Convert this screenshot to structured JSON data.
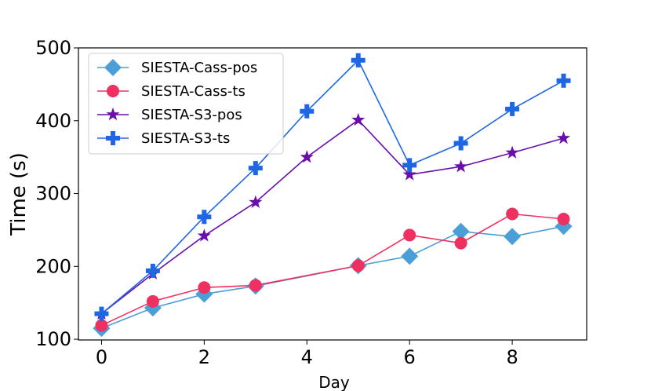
{
  "chart_data": {
    "type": "line",
    "title": "",
    "xlabel": "Day",
    "ylabel": "Time (s)",
    "xlim": [
      -0.45,
      9.45
    ],
    "ylim": [
      99,
      500
    ],
    "xticks": [
      0,
      2,
      4,
      6,
      8
    ],
    "yticks": [
      100,
      200,
      300,
      400,
      500
    ],
    "x": [
      0,
      1,
      2,
      3,
      4,
      5,
      6,
      7,
      8,
      9
    ],
    "grid": false,
    "legend_position": "top-left",
    "series": [
      {
        "name": "SIESTA-Cass-pos",
        "color": "#4c9ed6",
        "marker": "diamond",
        "values": [
          115,
          143,
          162,
          173,
          null,
          201,
          214,
          248,
          241,
          255
        ]
      },
      {
        "name": "SIESTA-Cass-ts",
        "color": "#f03060",
        "marker": "circle",
        "values": [
          119,
          152,
          171,
          174,
          null,
          201,
          243,
          232,
          272,
          265
        ]
      },
      {
        "name": "SIESTA-S3-pos",
        "color": "#6a0dad",
        "marker": "star",
        "values": [
          135,
          190,
          242,
          288,
          350,
          401,
          326,
          337,
          356,
          376
        ]
      },
      {
        "name": "SIESTA-S3-ts",
        "color": "#1f66e5",
        "marker": "plus",
        "values": [
          135,
          194,
          268,
          335,
          413,
          483,
          339,
          369,
          416,
          455
        ]
      }
    ]
  }
}
